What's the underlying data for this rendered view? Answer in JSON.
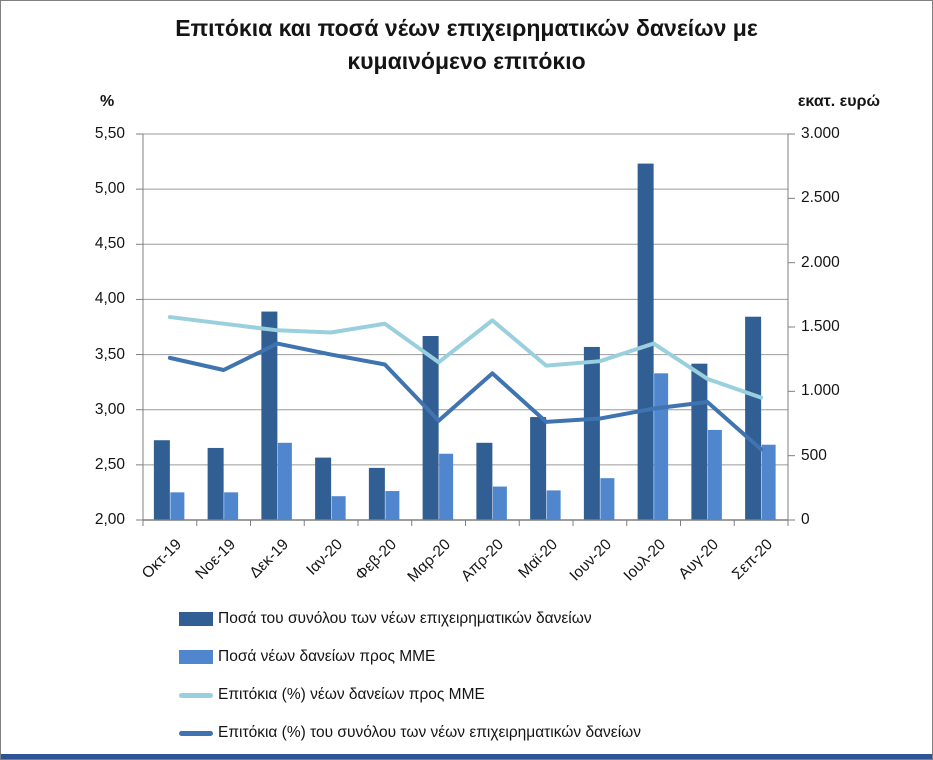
{
  "window": {
    "background": "#ffffff",
    "border_color": "#7f7f7f",
    "bottom_strip_color": "#2f5496"
  },
  "chart_data": {
    "type": "combo-bar-line",
    "title": "Επιτόκια και ποσά νέων επιχειρηματικών δανείων με κυμαινόμενο επιτόκιο",
    "title_lines": [
      "Επιτόκια και ποσά νέων επιχειρηματικών δανείων με",
      "κυμαινόμενο επιτόκιο"
    ],
    "grid": true,
    "legend_position": "bottom",
    "left_axis": {
      "unit_label": "%",
      "min": 2.0,
      "max": 5.5,
      "step": 0.5,
      "tick_labels": [
        "5,50",
        "5,00",
        "4,50",
        "4,00",
        "3,50",
        "3,00",
        "2,50",
        "2,00"
      ]
    },
    "right_axis": {
      "unit_label": "εκατ. ευρώ",
      "min": 0,
      "max": 3000,
      "step": 500,
      "tick_labels": [
        "3.000",
        "2.500",
        "2.000",
        "1.500",
        "1.000",
        "500",
        "0"
      ]
    },
    "categories": [
      "Οκτ-19",
      "Νοε-19",
      "Δεκ-19",
      "Ιαν-20",
      "Φεβ-20",
      "Μαρ-20",
      "Απρ-20",
      "Μαϊ-20",
      "Ιουν-20",
      "Ιουλ-20",
      "Αυγ-20",
      "Σεπ-20"
    ],
    "series": [
      {
        "name": "Ποσά του συνόλου των νέων επιχειρηματικών δανείων",
        "type": "bar",
        "axis": "right",
        "color": "#315e93",
        "values": [
          620,
          560,
          1620,
          485,
          405,
          1430,
          600,
          800,
          1345,
          2770,
          1215,
          1580
        ]
      },
      {
        "name": "Ποσά νέων δανείων προς ΜΜΕ",
        "type": "bar",
        "axis": "right",
        "color": "#4f86ce",
        "values": [
          215,
          215,
          600,
          185,
          225,
          515,
          260,
          230,
          325,
          1140,
          700,
          585
        ]
      },
      {
        "name": "Επιτόκια (%) νέων δανείων προς ΜΜΕ",
        "type": "line",
        "axis": "left",
        "color": "#9ad0de",
        "values": [
          3.84,
          3.78,
          3.72,
          3.7,
          3.78,
          3.43,
          3.81,
          3.4,
          3.44,
          3.6,
          3.28,
          3.11
        ]
      },
      {
        "name": "Επιτόκια (%) του συνόλου των νέων επιχειρηματικών δανείων",
        "type": "line",
        "axis": "left",
        "color": "#3f74b0",
        "values": [
          3.47,
          3.36,
          3.6,
          3.5,
          3.41,
          2.9,
          3.33,
          2.89,
          2.92,
          3.01,
          3.07,
          2.64
        ]
      }
    ],
    "colors": {
      "gridline": "#9b9b9b",
      "axis": "#7f7f7f"
    }
  }
}
